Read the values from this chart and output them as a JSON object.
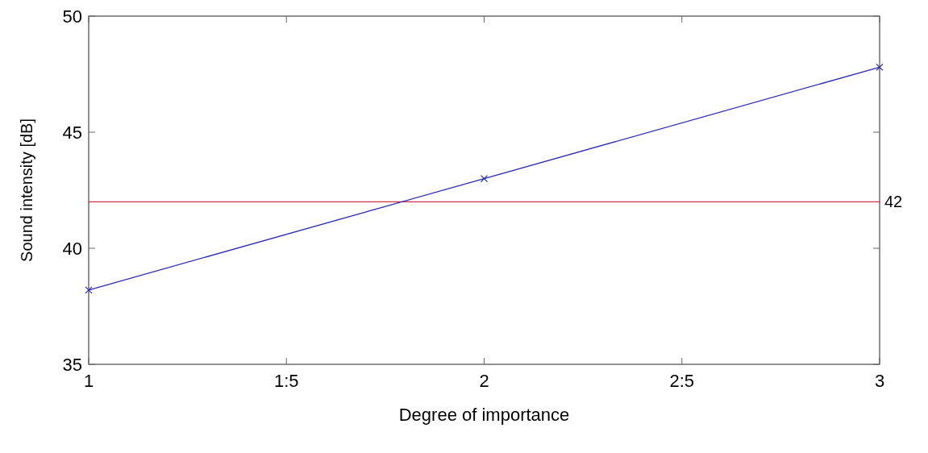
{
  "chart_data": {
    "type": "line",
    "xlabel": "Degree of importance",
    "ylabel": "Sound intensity [dB]",
    "x": [
      1,
      2,
      3
    ],
    "series": [
      {
        "color": "#2b2bb0",
        "values": [
          38.2,
          43.0,
          47.8
        ]
      }
    ],
    "xlim": [
      1,
      3
    ],
    "xticks": [
      1,
      {
        "value": 1.5,
        "label": "1:5"
      },
      2,
      {
        "value": 2.5,
        "label": "2:5"
      },
      3
    ],
    "ylim": [
      35,
      50
    ],
    "yticks": [
      35,
      40,
      45,
      50
    ],
    "ref_lines": [
      {
        "axis": "y",
        "value": 42,
        "label": "42",
        "color": "#d0304a"
      }
    ],
    "marker": "cross",
    "grid": false
  }
}
